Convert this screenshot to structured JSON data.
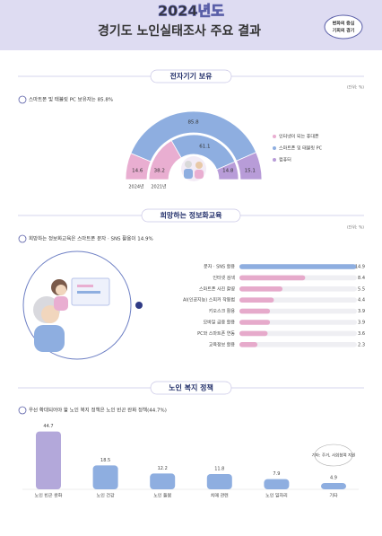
{
  "header": {
    "year": "2024년도",
    "title": "경기도 노인실태조사 주요 결과",
    "badge": [
      "변화의 중심",
      "기회의 경기"
    ]
  },
  "chart_data": [
    {
      "type": "donut",
      "section": "전자기기 보유",
      "unit": "(단위: %)",
      "note": "스마트폰 및 태블릿 PC 보유자는 85.8%",
      "categories": [
        "2024년",
        "2021년"
      ],
      "series": [
        {
          "name": "인터넷이 되는 휴대폰",
          "color": "#e9aed1",
          "values": [
            14.6,
            38.2
          ]
        },
        {
          "name": "스마트폰 및 태블릿 PC",
          "color": "#8eaee0",
          "values": [
            85.8,
            61.1
          ]
        },
        {
          "name": "컴퓨터",
          "color": "#b89cd8",
          "values": [
            15.1,
            14.8
          ]
        }
      ]
    },
    {
      "type": "hbar",
      "section": "희망하는 정보화교육",
      "unit": "(단위: %)",
      "note": "희망하는 정보화교육은 스마트폰 문자 · SNS 활용이 14.9%",
      "categories": [
        "문자 · SNS 활용",
        "인터넷 검색",
        "스마트폰 사진 촬영",
        "AI(인공지능) 스피커 작동법",
        "키오스크 활용",
        "모바일 금융 활용",
        "PC와 스마트폰 연동",
        "교육정보 활용"
      ],
      "values": [
        14.9,
        8.4,
        5.5,
        4.4,
        3.9,
        3.9,
        3.6,
        2.3
      ],
      "colors": [
        "#8eaee0",
        "#e6aacb",
        "#e6aacb",
        "#e6aacb",
        "#e6aacb",
        "#e6aacb",
        "#e6aacb",
        "#e6aacb"
      ],
      "xlim": [
        0,
        15
      ]
    },
    {
      "type": "bar",
      "section": "노인 복지 정책",
      "note": "우선 확대되어야 할 노인 복지 정책은 노인 빈곤 완화 정책(44.7%)",
      "categories": [
        "노인 빈곤 완화",
        "노인 건강",
        "노인 돌봄",
        "치매 관련",
        "노인 일자리",
        "기타"
      ],
      "values": [
        44.7,
        18.5,
        12.2,
        11.8,
        7.9,
        4.9
      ],
      "colors": [
        "#b3a8da",
        "#8eaee0",
        "#8eaee0",
        "#8eaee0",
        "#8eaee0",
        "#8eaee0"
      ],
      "annotation": "기타: 주거, 사회참여 지원",
      "ylim": [
        0,
        50
      ]
    }
  ]
}
